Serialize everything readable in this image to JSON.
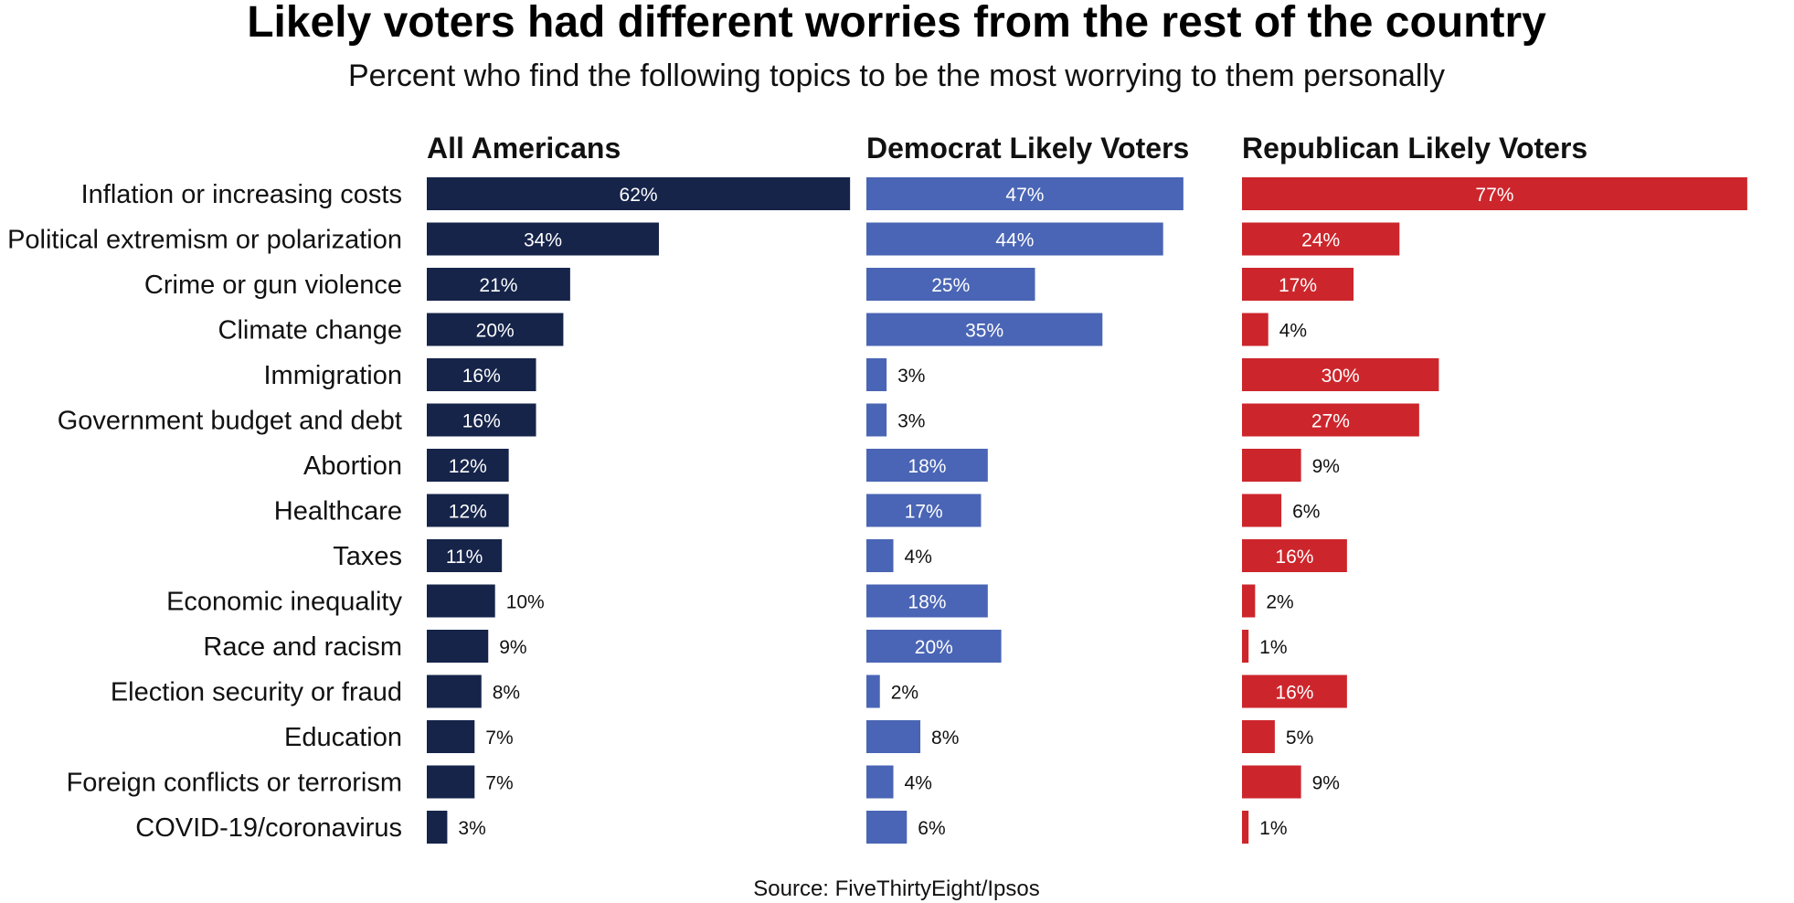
{
  "chart_data": {
    "type": "bar",
    "orientation": "horizontal",
    "title": "Likely voters had different worries from the rest of the country",
    "subtitle": "Percent who find the following topics to be the most worrying to them personally",
    "source": "Source: FiveThirtyEight/Ipsos",
    "unit_suffix": "%",
    "categories": [
      "Inflation or increasing costs",
      "Political extremism or polarization",
      "Crime or gun violence",
      "Climate change",
      "Immigration",
      "Government budget and debt",
      "Abortion",
      "Healthcare",
      "Taxes",
      "Economic inequality",
      "Race and racism",
      "Election security or fraud",
      "Education",
      "Foreign conflicts or terrorism",
      "COVID-19/coronavirus"
    ],
    "series": [
      {
        "name": "All Americans",
        "color": "#16244a",
        "values": [
          62,
          34,
          21,
          20,
          16,
          16,
          12,
          12,
          11,
          10,
          9,
          8,
          7,
          7,
          3
        ]
      },
      {
        "name": "Democrat Likely Voters",
        "color": "#4a65b5",
        "values": [
          47,
          44,
          25,
          35,
          3,
          3,
          18,
          17,
          4,
          18,
          20,
          2,
          8,
          4,
          6
        ]
      },
      {
        "name": "Republican Likely Voters",
        "color": "#cc262c",
        "values": [
          77,
          24,
          17,
          4,
          30,
          27,
          9,
          6,
          16,
          2,
          1,
          16,
          5,
          9,
          1
        ]
      }
    ]
  }
}
